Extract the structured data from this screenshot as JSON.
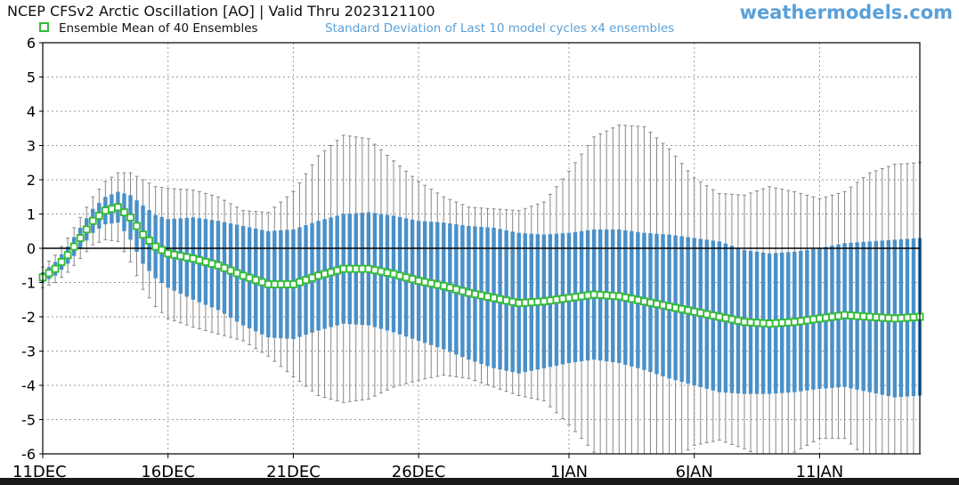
{
  "header": {
    "title": "NCEP CFSv2 Arctic Oscillation [AO] | Valid Thru 2023121100",
    "brand": "weathermodels.com",
    "legend_mean": "Ensemble Mean of 40 Ensembles",
    "legend_sd": "Standard Deviation of Last 10 model cycles x4 ensembles"
  },
  "colors": {
    "mean_marker": "#33bb33",
    "stdev_bar": "#4a90c8",
    "range_whisker": "#888888",
    "brand": "#5ba0d8"
  },
  "chart_data": {
    "type": "line",
    "ylim": [
      -6,
      6
    ],
    "yticks": [
      -6,
      -5,
      -4,
      -3,
      -2,
      -1,
      0,
      1,
      2,
      3,
      4,
      5,
      6
    ],
    "xlim_days": [
      0,
      35
    ],
    "xticks": [
      {
        "label": "11DEC",
        "day": 0
      },
      {
        "label": "16DEC",
        "day": 5
      },
      {
        "label": "21DEC",
        "day": 10
      },
      {
        "label": "26DEC",
        "day": 15
      },
      {
        "label": "1JAN",
        "day": 21
      },
      {
        "label": "6JAN",
        "day": 26
      },
      {
        "label": "11JAN",
        "day": 31
      }
    ],
    "steps_per_day": 4,
    "grid": true,
    "reference_line": 0,
    "series": [
      {
        "name": "Ensemble Mean of 40 Ensembles",
        "keypoints": [
          [
            0,
            -0.85
          ],
          [
            0.5,
            -0.6
          ],
          [
            1,
            -0.2
          ],
          [
            1.5,
            0.3
          ],
          [
            2,
            0.8
          ],
          [
            2.5,
            1.1
          ],
          [
            3,
            1.2
          ],
          [
            3.5,
            0.9
          ],
          [
            4,
            0.4
          ],
          [
            4.5,
            0.05
          ],
          [
            5,
            -0.15
          ],
          [
            6,
            -0.3
          ],
          [
            7,
            -0.5
          ],
          [
            8,
            -0.8
          ],
          [
            9,
            -1.05
          ],
          [
            10,
            -1.05
          ],
          [
            11,
            -0.8
          ],
          [
            12,
            -0.6
          ],
          [
            13,
            -0.6
          ],
          [
            14,
            -0.75
          ],
          [
            15,
            -0.95
          ],
          [
            16,
            -1.1
          ],
          [
            17,
            -1.3
          ],
          [
            18,
            -1.45
          ],
          [
            19,
            -1.6
          ],
          [
            20,
            -1.55
          ],
          [
            21,
            -1.45
          ],
          [
            22,
            -1.35
          ],
          [
            23,
            -1.4
          ],
          [
            24,
            -1.55
          ],
          [
            25,
            -1.7
          ],
          [
            26,
            -1.85
          ],
          [
            27,
            -2.0
          ],
          [
            28,
            -2.15
          ],
          [
            29,
            -2.2
          ],
          [
            30,
            -2.15
          ],
          [
            31,
            -2.05
          ],
          [
            32,
            -1.95
          ],
          [
            33,
            -2.0
          ],
          [
            34,
            -2.05
          ],
          [
            35,
            -2.0
          ]
        ]
      },
      {
        "name": "Standard Deviation of Last 10 model cycles x4 ensembles",
        "spread_keypoints": [
          [
            0,
            0.15
          ],
          [
            1,
            0.25
          ],
          [
            2,
            0.35
          ],
          [
            3,
            0.45
          ],
          [
            4,
            0.85
          ],
          [
            5,
            1.0
          ],
          [
            6,
            1.2
          ],
          [
            7,
            1.3
          ],
          [
            8,
            1.45
          ],
          [
            9,
            1.55
          ],
          [
            10,
            1.6
          ],
          [
            11,
            1.6
          ],
          [
            12,
            1.6
          ],
          [
            13,
            1.65
          ],
          [
            14,
            1.7
          ],
          [
            15,
            1.75
          ],
          [
            16,
            1.85
          ],
          [
            17,
            1.95
          ],
          [
            18,
            2.05
          ],
          [
            19,
            2.05
          ],
          [
            20,
            1.95
          ],
          [
            21,
            1.9
          ],
          [
            22,
            1.9
          ],
          [
            23,
            1.95
          ],
          [
            24,
            2.0
          ],
          [
            25,
            2.1
          ],
          [
            26,
            2.15
          ],
          [
            27,
            2.2
          ],
          [
            28,
            2.1
          ],
          [
            29,
            2.05
          ],
          [
            30,
            2.05
          ],
          [
            31,
            2.05
          ],
          [
            32,
            2.1
          ],
          [
            33,
            2.2
          ],
          [
            34,
            2.3
          ],
          [
            35,
            2.3
          ]
        ]
      },
      {
        "name": "range",
        "range_keypoints": [
          [
            0,
            0.3
          ],
          [
            1,
            0.5
          ],
          [
            2,
            0.7
          ],
          [
            3,
            1.0
          ],
          [
            4,
            1.6
          ],
          [
            5,
            1.9
          ],
          [
            6,
            2.0
          ],
          [
            7,
            2.0
          ],
          [
            8,
            1.9
          ],
          [
            9,
            2.1
          ],
          [
            10,
            2.7
          ],
          [
            11,
            3.5
          ],
          [
            12,
            3.9
          ],
          [
            13,
            3.8
          ],
          [
            14,
            3.3
          ],
          [
            15,
            2.9
          ],
          [
            16,
            2.6
          ],
          [
            17,
            2.5
          ],
          [
            18,
            2.6
          ],
          [
            19,
            2.7
          ],
          [
            20,
            2.9
          ],
          [
            21,
            3.7
          ],
          [
            22,
            4.6
          ],
          [
            23,
            5.0
          ],
          [
            24,
            5.1
          ],
          [
            25,
            4.6
          ],
          [
            26,
            3.9
          ],
          [
            27,
            3.6
          ],
          [
            28,
            3.7
          ],
          [
            29,
            4.0
          ],
          [
            30,
            3.8
          ],
          [
            31,
            3.5
          ],
          [
            32,
            3.6
          ],
          [
            33,
            4.2
          ],
          [
            34,
            4.5
          ],
          [
            35,
            4.5
          ]
        ]
      }
    ]
  }
}
